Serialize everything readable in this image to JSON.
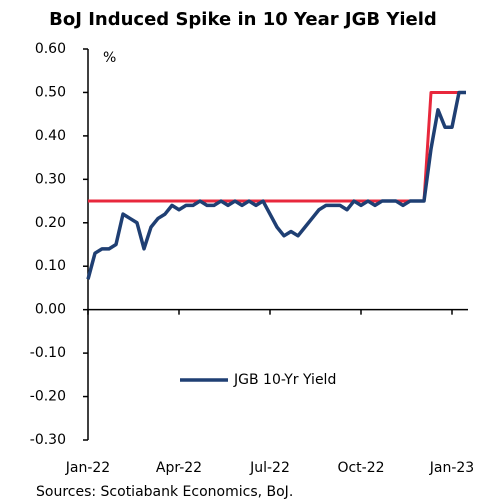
{
  "chart_data": {
    "type": "line",
    "title": "BoJ Induced Spike in 10 Year JGB Yield",
    "y_unit": "%",
    "source": "Sources: Scotiabank Economics, BoJ.",
    "categories": [
      "Jan-22",
      null,
      null,
      null,
      null,
      null,
      null,
      null,
      null,
      null,
      null,
      null,
      null,
      "Apr-22",
      null,
      null,
      null,
      null,
      null,
      null,
      null,
      null,
      null,
      null,
      null,
      null,
      "Jul-22",
      null,
      null,
      null,
      null,
      null,
      null,
      null,
      null,
      null,
      null,
      null,
      null,
      "Oct-22",
      null,
      null,
      null,
      null,
      null,
      null,
      null,
      null,
      null,
      null,
      null,
      null,
      "Jan-23",
      null,
      null
    ],
    "series": [
      {
        "name": "JGB 10-Yr Yield",
        "color": "#1f3f73",
        "width": 3.5,
        "values": [
          0.07,
          0.13,
          0.14,
          0.14,
          0.15,
          0.22,
          0.21,
          0.2,
          0.14,
          0.19,
          0.21,
          0.22,
          0.24,
          0.23,
          0.24,
          0.24,
          0.25,
          0.24,
          0.24,
          0.25,
          0.24,
          0.25,
          0.24,
          0.25,
          0.24,
          0.25,
          0.22,
          0.19,
          0.17,
          0.18,
          0.17,
          0.19,
          0.21,
          0.23,
          0.24,
          0.24,
          0.24,
          0.23,
          0.25,
          0.24,
          0.25,
          0.24,
          0.25,
          0.25,
          0.25,
          0.24,
          0.25,
          0.25,
          0.25,
          0.37,
          0.46,
          0.42,
          0.42,
          0.5,
          0.5
        ]
      },
      {
        "color": "#e8283c",
        "width": 3,
        "values": [
          0.25,
          0.25,
          0.25,
          0.25,
          0.25,
          0.25,
          0.25,
          0.25,
          0.25,
          0.25,
          0.25,
          0.25,
          0.25,
          0.25,
          0.25,
          0.25,
          0.25,
          0.25,
          0.25,
          0.25,
          0.25,
          0.25,
          0.25,
          0.25,
          0.25,
          0.25,
          0.25,
          0.25,
          0.25,
          0.25,
          0.25,
          0.25,
          0.25,
          0.25,
          0.25,
          0.25,
          0.25,
          0.25,
          0.25,
          0.25,
          0.25,
          0.25,
          0.25,
          0.25,
          0.25,
          0.25,
          0.25,
          0.25,
          0.25,
          0.5,
          0.5,
          0.5,
          0.5,
          0.5,
          0.5
        ]
      }
    ],
    "ylim": [
      -0.3,
      0.6
    ],
    "yticks": [
      {
        "value": -0.3,
        "label": "-0.30"
      },
      {
        "value": -0.2,
        "label": "-0.20"
      },
      {
        "value": -0.1,
        "label": "-0.10"
      },
      {
        "value": 0,
        "label": "0.00"
      },
      {
        "value": 0.1,
        "label": "0.10"
      },
      {
        "value": 0.2,
        "label": "0.20"
      },
      {
        "value": 0.3,
        "label": "0.30"
      },
      {
        "value": 0.4,
        "label": "0.40"
      },
      {
        "value": 0.5,
        "label": "0.50"
      },
      {
        "value": 0.6,
        "label": "0.60"
      }
    ],
    "grid": false,
    "legend": "center"
  }
}
